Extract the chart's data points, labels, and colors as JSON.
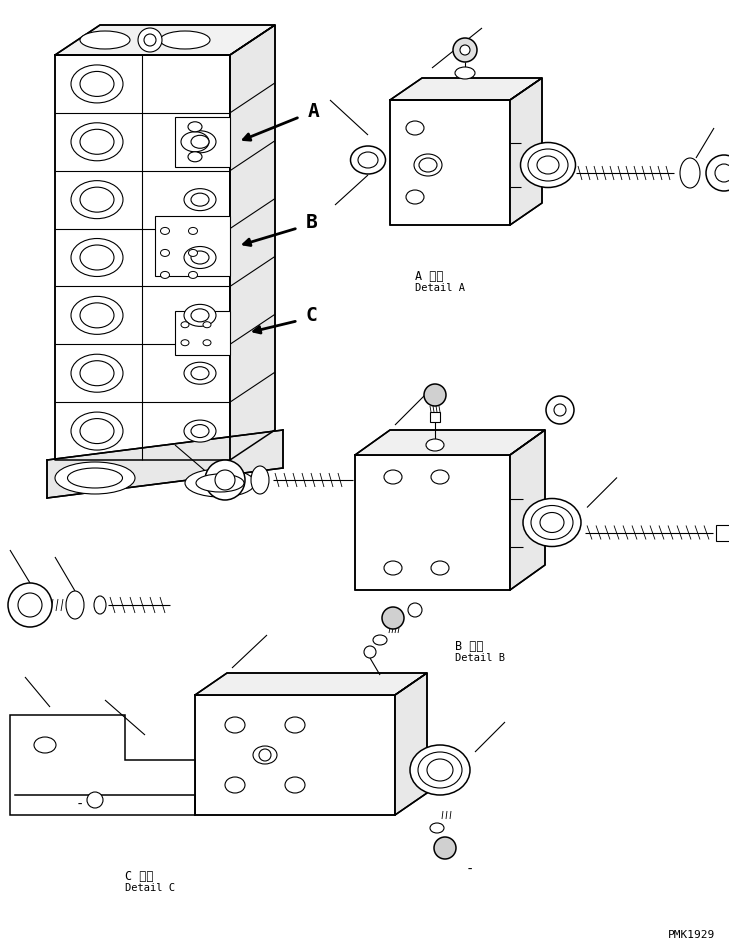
{
  "bg_color": "#ffffff",
  "line_color": "#000000",
  "fig_width": 7.29,
  "fig_height": 9.5,
  "dpi": 100,
  "watermark": "PMK1929",
  "labels": {
    "A_detail_jp": "A 詳細",
    "A_detail_en": "Detail A",
    "B_detail_jp": "B 詳細",
    "B_detail_en": "Detail B",
    "C_detail_jp": "C 詳細",
    "C_detail_en": "Detail C"
  }
}
